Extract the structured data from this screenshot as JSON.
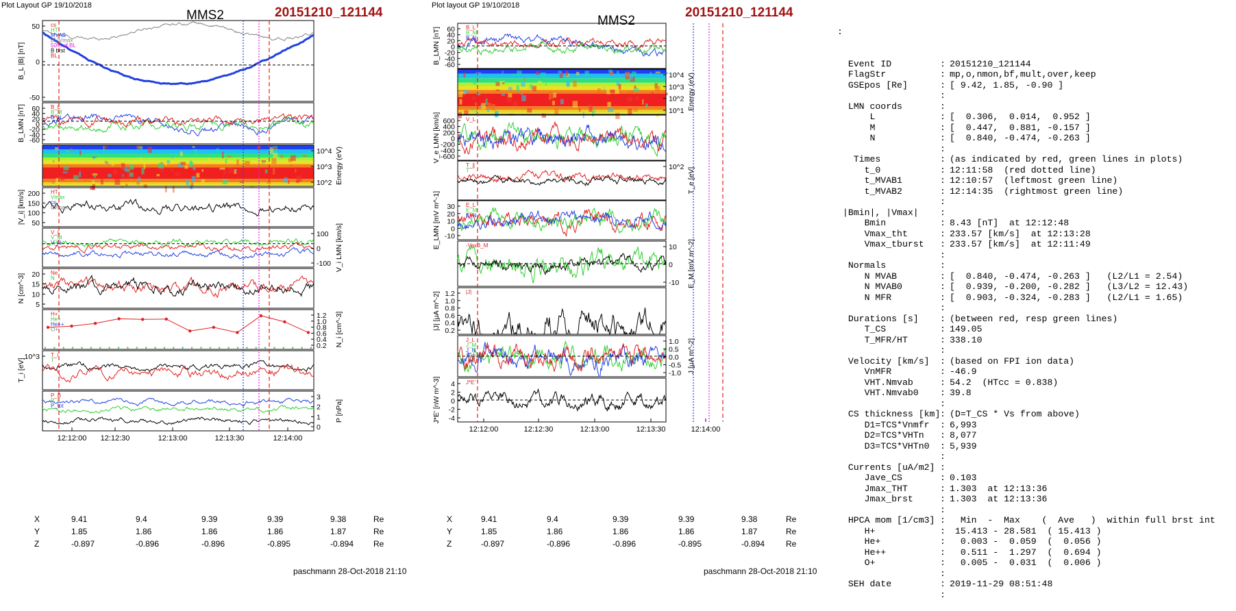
{
  "left_header": {
    "layout": "Plot Layout GP 19/10/2018",
    "spacecraft": "MMS2",
    "event": "20151210_121144"
  },
  "mid_header": {
    "layout": "Plot layout GP 19/10/2018",
    "spacecraft": "MMS2",
    "event": "20151210_121144"
  },
  "footer": {
    "left": "paschmann 28-Oct-2018 21:10",
    "mid": "paschmann 28-Oct-2018 21:10"
  },
  "time_ticks": [
    "12:12:00",
    "12:12:30",
    "12:13:00",
    "12:13:30",
    "12:14:00"
  ],
  "coords": {
    "rows": [
      {
        "name": "X",
        "values": [
          "9.41",
          "9.4",
          "9.39",
          "9.39",
          "9.38"
        ],
        "unit": "Re"
      },
      {
        "name": "Y",
        "values": [
          "1.85",
          "1.86",
          "1.86",
          "1.86",
          "1.87"
        ],
        "unit": "Re"
      },
      {
        "name": "Z",
        "values": [
          "-0.897",
          "-0.896",
          "-0.896",
          "-0.895",
          "-0.894"
        ],
        "unit": "Re"
      }
    ]
  },
  "colors": {
    "red": "#e02020",
    "green": "#30d030",
    "blue": "#2040e0",
    "black": "#000000",
    "gray": "#808080",
    "magenta": "#e020e0",
    "event_red": "#a01010"
  },
  "chart_data": [
    {
      "id": "left-figure",
      "type": "line",
      "title": "MMS2",
      "x": {
        "range": [
          "12:11:44",
          "12:14:06"
        ],
        "ticks": [
          "12:12:00",
          "12:12:30",
          "12:13:00",
          "12:13:30",
          "12:14:00"
        ]
      },
      "panels": [
        {
          "ylabel": "B_L |B| [nT]",
          "yticks_left": [
            "50",
            "0",
            "-50"
          ],
          "legend": [
            "cs",
            "HT",
            "MVAB",
            "BL|Vmax",
            "50% of BL",
            "B brst",
            "BL"
          ],
          "series": [
            "BL",
            "|B|"
          ]
        },
        {
          "ylabel": "B_LMN [nT]",
          "yticks_left": [
            "60",
            "40",
            "20",
            "0",
            "-20",
            "-40",
            "-60"
          ],
          "legend": [
            "B_L",
            "B_M",
            "B_N"
          ]
        },
        {
          "ylabel": "Energy (eV)",
          "yticks_right": [
            "10^4",
            "10^3",
            "10^2"
          ],
          "type": "spectrogram"
        },
        {
          "ylabel": "|V_i| [km/s]",
          "yticks_left": [
            "200",
            "150",
            "100",
            "50"
          ],
          "legend": [
            "HT",
            "Vmax",
            "cs",
            "dVmax"
          ]
        },
        {
          "ylabel": "V_i LMN [km/s]",
          "yticks_right": [
            "100",
            "0",
            "-100"
          ],
          "legend": [
            "V_L",
            "V_M",
            "V_N"
          ]
        },
        {
          "ylabel": "N [cm^-3]",
          "yticks_left": [
            "20",
            "15",
            "10",
            "5"
          ],
          "legend": [
            "Ne",
            "N"
          ]
        },
        {
          "ylabel": "N_i [cm^-3]",
          "yticks_right": [
            "1.2",
            "1.0",
            "0.8",
            "0.6",
            "0.4",
            "0.2"
          ],
          "legend": [
            "H+",
            "He+",
            "He++",
            "O+"
          ],
          "he_pp_points": [
            0.72,
            0.76,
            0.85,
            1.0,
            0.98,
            0.99,
            0.6,
            0.72,
            0.55,
            1.1,
            0.9,
            0.55
          ]
        },
        {
          "ylabel": "T_i [eV]",
          "yticks_left": [
            "10^3"
          ],
          "legend": [
            "T_i",
            "T"
          ]
        },
        {
          "ylabel": "P [nPa]",
          "yticks_right": [
            "3",
            "2",
            "1",
            "0"
          ],
          "legend": [
            "P_B",
            "P_i",
            "P_tot"
          ]
        }
      ]
    },
    {
      "id": "mid-figure",
      "type": "line",
      "title": "MMS2",
      "x": {
        "range": [
          "12:11:44",
          "12:14:06"
        ],
        "ticks": [
          "12:12:00",
          "12:12:30",
          "12:13:00",
          "12:13:30",
          "12:14:00"
        ]
      },
      "panels": [
        {
          "ylabel": "B_LMN [nT]",
          "yticks_left": [
            "60",
            "40",
            "20",
            "0",
            "-20",
            "-40",
            "-60"
          ],
          "legend": [
            "B_L",
            "B_M",
            "B_N"
          ]
        },
        {
          "ylabel": "Energy (eV)",
          "yticks_right": [
            "10^4",
            "10^3",
            "10^2",
            "10^1"
          ],
          "type": "spectrogram"
        },
        {
          "ylabel": "V_e LMN [km/s]",
          "yticks_left": [
            "600",
            "400",
            "200",
            "0",
            "-200",
            "-400",
            "-600"
          ],
          "legend": [
            "V_L"
          ]
        },
        {
          "ylabel": "T_e [eV]",
          "yticks_right": [
            "10^2"
          ],
          "legend": [
            "T_∥",
            "T"
          ]
        },
        {
          "ylabel": "E_LMN [mV m^-1]",
          "yticks_left": [
            "30",
            "20",
            "10",
            "0",
            "-10"
          ],
          "legend": [
            "E_L",
            "E_M",
            "E_N"
          ]
        },
        {
          "ylabel": "E_M [mV m^-2]",
          "yticks_right": [
            "10",
            "0",
            "-10"
          ],
          "legend": [
            "-VexB_M"
          ]
        },
        {
          "ylabel": "|J| [μA m^-2]",
          "yticks_left": [
            "1.2",
            "1.0",
            "0.8",
            "0.6",
            "0.4",
            "0.2"
          ],
          "legend": [
            "|J|"
          ]
        },
        {
          "ylabel": "J [μA m^-2]",
          "yticks_right": [
            "1.0",
            "0.5",
            "0.0",
            "-0.5",
            "-1.0"
          ],
          "legend": [
            "J_L",
            "J_M",
            "J_N",
            "|J|max"
          ]
        },
        {
          "ylabel": "J*E' [nW m^-3]",
          "yticks_left": [
            "4",
            "2",
            "0",
            "-2",
            "-4"
          ],
          "legend": [
            "J*E'"
          ]
        }
      ]
    }
  ],
  "right_panel": {
    "top": ":",
    "rows": [
      {
        "k": "  Event ID",
        "v": "20151210_121144"
      },
      {
        "k": "  FlagStr",
        "v": "mp,o,nmon,bf,mult,over,keep"
      },
      {
        "k": "  GSEpos [Re]",
        "v": "[ 9.42, 1.85, -0.90 ]"
      },
      {
        "k": "",
        "v": ""
      },
      {
        "k": "  LMN coords",
        "v": ""
      },
      {
        "k": "      L",
        "v": "[  0.306,  0.014,  0.952 ]"
      },
      {
        "k": "      M",
        "v": "[  0.447,  0.881, -0.157 ]"
      },
      {
        "k": "      N",
        "v": "[  0.840, -0.474, -0.263 ]"
      },
      {
        "k": "",
        "v": ""
      },
      {
        "k": "   Times",
        "v": "(as indicated by red, green lines in plots)"
      },
      {
        "k": "     t_0",
        "v": "12:11:58  (red dotted line)"
      },
      {
        "k": "     t_MVAB1",
        "v": "12:10:57  (leftmost green line)"
      },
      {
        "k": "     t_MVAB2",
        "v": "12:14:35  (rightmost green line)"
      },
      {
        "k": "",
        "v": ""
      },
      {
        "k": " |Bmin|, |Vmax|",
        "v": ""
      },
      {
        "k": "     Bmin",
        "v": "8.43 [nT]  at 12:12:48"
      },
      {
        "k": "     Vmax_tht",
        "v": "233.57 [km/s]  at 12:13:28"
      },
      {
        "k": "     Vmax_tburst",
        "v": "233.57 [km/s]  at 12:11:49"
      },
      {
        "k": "",
        "v": ""
      },
      {
        "k": "  Normals",
        "v": ""
      },
      {
        "k": "     N MVAB",
        "v": "[  0.840, -0.474, -0.263 ]   (L2/L1 = 2.54)"
      },
      {
        "k": "     N MVAB0",
        "v": "[  0.939, -0.200, -0.282 ]   (L3/L2 = 12.43)"
      },
      {
        "k": "     N MFR",
        "v": "[  0.903, -0.324, -0.283 ]   (L2/L1 = 1.65)"
      },
      {
        "k": "",
        "v": ""
      },
      {
        "k": "  Durations [s]",
        "v": "(between red, resp green lines)"
      },
      {
        "k": "     T_CS",
        "v": "149.05"
      },
      {
        "k": "     T_MFR/HT",
        "v": "338.10"
      },
      {
        "k": "",
        "v": ""
      },
      {
        "k": "  Velocity [km/s]",
        "v": "(based on FPI ion data)"
      },
      {
        "k": "     VnMFR",
        "v": "-46.9"
      },
      {
        "k": "     VHT.Nmvab",
        "v": "54.2  (HTcc = 0.838)"
      },
      {
        "k": "     VHT.Nmvab0",
        "v": "39.8"
      },
      {
        "k": "",
        "v": ""
      },
      {
        "k": "  CS thickness [km]",
        "v": "(D=T_CS * Vs from above)"
      },
      {
        "k": "     D1=TCS*Vnmfr",
        "v": "6,993"
      },
      {
        "k": "     D2=TCS*VHTn",
        "v": "8,077"
      },
      {
        "k": "     D3=TCS*VHTn0",
        "v": "5,939"
      },
      {
        "k": "",
        "v": ""
      },
      {
        "k": "  Currents [uA/m2]",
        "v": ""
      },
      {
        "k": "     Jave_CS",
        "v": "0.103"
      },
      {
        "k": "     Jmax_THT",
        "v": "1.303  at 12:13:36"
      },
      {
        "k": "     Jmax_brst",
        "v": "1.303  at 12:13:36"
      },
      {
        "k": "",
        "v": ""
      },
      {
        "k": "  HPCA mom [1/cm3]",
        "v": "  Min  -  Max    (  Ave   )  within full brst int"
      },
      {
        "k": "     H+",
        "v": " 15.413 - 28.581  ( 15.413 )"
      },
      {
        "k": "     He+",
        "v": "  0.003 -  0.059  (  0.056 )"
      },
      {
        "k": "     He++",
        "v": "  0.511 -  1.297  (  0.694 )"
      },
      {
        "k": "     O+",
        "v": "  0.005 -  0.031  (  0.006 )"
      },
      {
        "k": "",
        "v": ""
      },
      {
        "k": "  SEH date",
        "v": "2019-11-29 08:51:48"
      },
      {
        "k": "",
        "v": ""
      }
    ]
  }
}
